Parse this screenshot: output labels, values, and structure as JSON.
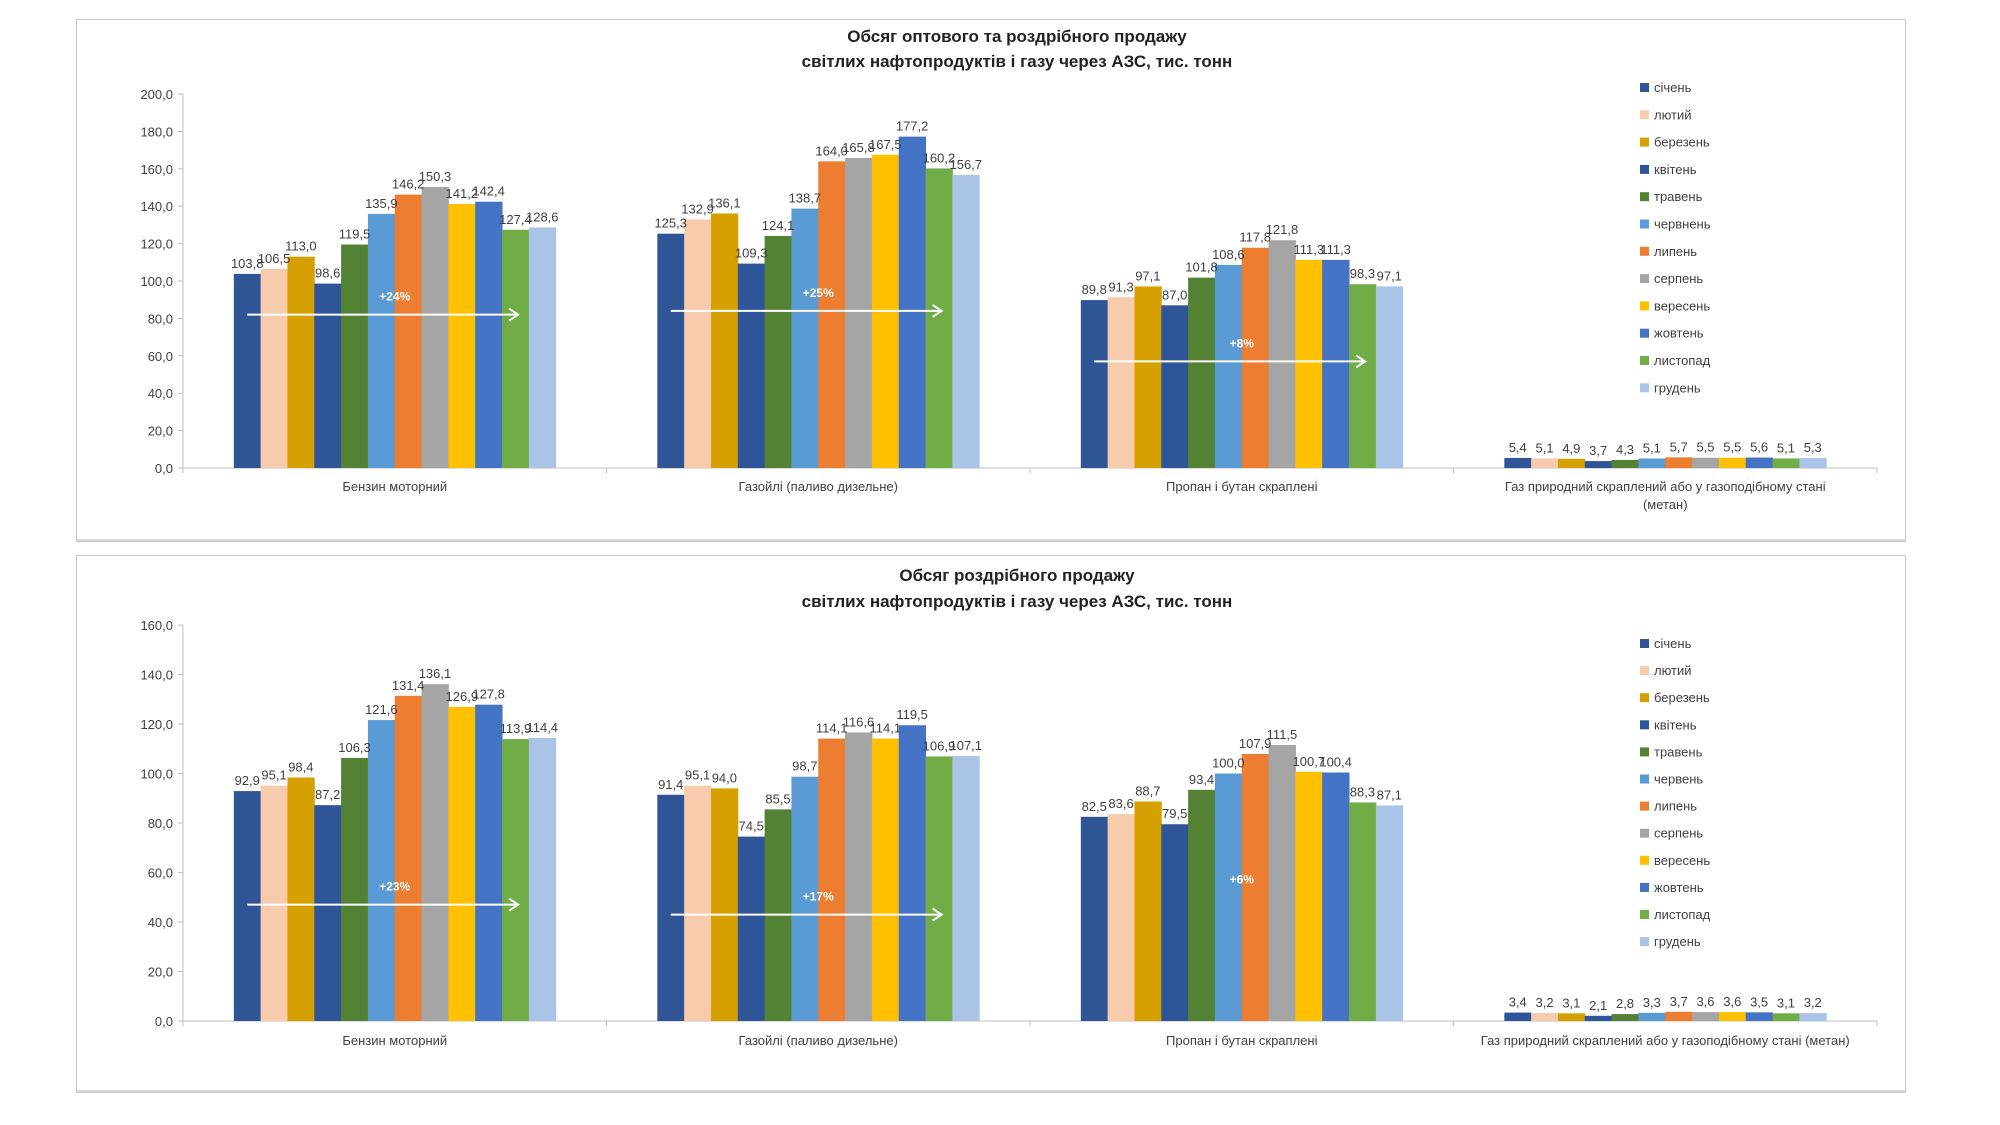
{
  "chart_data": [
    {
      "type": "bar",
      "title": [
        "Обсяг оптового та роздрібного продажу",
        "світлих нафтопродуктів і газу через АЗС, тис. тонн"
      ],
      "xlabel": "",
      "ylabel": "",
      "ylim": [
        0,
        200
      ],
      "yticks": [
        "0,0",
        "20,0",
        "40,0",
        "60,0",
        "80,0",
        "100,0",
        "120,0",
        "140,0",
        "160,0",
        "180,0",
        "200,0"
      ],
      "ytick_values": [
        0,
        20,
        40,
        60,
        80,
        100,
        120,
        140,
        160,
        180,
        200
      ],
      "grid": false,
      "legend_position": "right",
      "categories": [
        [
          "Бензин моторний"
        ],
        [
          "Газойлі (паливо дизельне)"
        ],
        [
          "Пропан і бутан скраплені"
        ],
        [
          "Газ природний скраплений або у газоподібному стані",
          "(метан)"
        ]
      ],
      "series": [
        {
          "name": "січень",
          "color": "#2f5597",
          "values": [
            103.8,
            125.3,
            89.8,
            5.4
          ],
          "labels": [
            "103,8",
            "125,3",
            "89,8",
            "5,4"
          ]
        },
        {
          "name": "лютий",
          "color": "#f8cbad",
          "values": [
            106.5,
            132.9,
            91.3,
            5.1
          ],
          "labels": [
            "106,5",
            "132,9",
            "91,3",
            "5,1"
          ]
        },
        {
          "name": "березень",
          "color": "#d6a000",
          "values": [
            113.0,
            136.1,
            97.1,
            4.9
          ],
          "labels": [
            "113,0",
            "136,1",
            "97,1",
            "4,9"
          ]
        },
        {
          "name": "квітень",
          "color": "#2e5597",
          "values": [
            98.6,
            109.3,
            87.0,
            3.7
          ],
          "labels": [
            "98,6",
            "109,3",
            "87,0",
            "3,7"
          ]
        },
        {
          "name": "травень",
          "color": "#548235",
          "values": [
            119.5,
            124.1,
            101.8,
            4.3
          ],
          "labels": [
            "119,5",
            "124,1",
            "101,8",
            "4,3"
          ]
        },
        {
          "name": "червнень",
          "color": "#5b9bd5",
          "values": [
            135.9,
            138.7,
            108.6,
            5.1
          ],
          "labels": [
            "135,9",
            "138,7",
            "108,6",
            "5,1"
          ]
        },
        {
          "name": "липень",
          "color": "#ed7d31",
          "values": [
            146.2,
            164.0,
            117.8,
            5.7
          ],
          "labels": [
            "146,2",
            "164,0",
            "117,8",
            "5,7"
          ]
        },
        {
          "name": "серпень",
          "color": "#a5a5a5",
          "values": [
            150.3,
            165.8,
            121.8,
            5.5
          ],
          "labels": [
            "150,3",
            "165,8",
            "121,8",
            "5,5"
          ]
        },
        {
          "name": "вересень",
          "color": "#ffc000",
          "values": [
            141.2,
            167.5,
            111.3,
            5.5
          ],
          "labels": [
            "141,2",
            "167,5",
            "111,3",
            "5,5"
          ]
        },
        {
          "name": "жовтень",
          "color": "#4472c4",
          "values": [
            142.4,
            177.2,
            111.3,
            5.6
          ],
          "labels": [
            "142,4",
            "177,2",
            "111,3",
            "5,6"
          ]
        },
        {
          "name": "листопад",
          "color": "#70ad47",
          "values": [
            127.4,
            160.2,
            98.3,
            5.1
          ],
          "labels": [
            "127,4",
            "160,2",
            "98,3",
            "5,1"
          ]
        },
        {
          "name": "грудень",
          "color": "#a9c4e6",
          "values": [
            128.6,
            156.7,
            97.1,
            5.3
          ],
          "labels": [
            "128,6",
            "156,7",
            "97,1",
            "5,3"
          ]
        }
      ],
      "annotations": [
        {
          "category_index": 0,
          "text": "+24%",
          "arrow": true,
          "level": 82
        },
        {
          "category_index": 1,
          "text": "+25%",
          "arrow": true,
          "level": 84
        },
        {
          "category_index": 2,
          "text": "+8%",
          "arrow": true,
          "level": 57
        }
      ]
    },
    {
      "type": "bar",
      "title": [
        "Обсяг роздрібного продажу",
        "світлих нафтопродуктів і газу через АЗС, тис. тонн"
      ],
      "xlabel": "",
      "ylabel": "",
      "ylim": [
        0,
        160
      ],
      "yticks": [
        "0,0",
        "20,0",
        "40,0",
        "60,0",
        "80,0",
        "100,0",
        "120,0",
        "140,0",
        "160,0"
      ],
      "ytick_values": [
        0,
        20,
        40,
        60,
        80,
        100,
        120,
        140,
        160
      ],
      "grid": false,
      "legend_position": "right",
      "categories": [
        [
          "Бензин моторний"
        ],
        [
          "Газойлі (паливо дизельне)"
        ],
        [
          "Пропан і бутан скраплені"
        ],
        [
          "Газ природний скраплений або у газоподібному стані (метан)"
        ]
      ],
      "series": [
        {
          "name": "січень",
          "color": "#2f5597",
          "values": [
            92.9,
            91.4,
            82.5,
            3.4
          ],
          "labels": [
            "92,9",
            "91,4",
            "82,5",
            "3,4"
          ]
        },
        {
          "name": "лютий",
          "color": "#f8cbad",
          "values": [
            95.1,
            95.1,
            83.6,
            3.2
          ],
          "labels": [
            "95,1",
            "95,1",
            "83,6",
            "3,2"
          ]
        },
        {
          "name": "березень",
          "color": "#d6a000",
          "values": [
            98.4,
            94.0,
            88.7,
            3.1
          ],
          "labels": [
            "98,4",
            "94,0",
            "88,7",
            "3,1"
          ]
        },
        {
          "name": "квітень",
          "color": "#2e5597",
          "values": [
            87.2,
            74.5,
            79.5,
            2.1
          ],
          "labels": [
            "87,2",
            "74,5",
            "79,5",
            "2,1"
          ]
        },
        {
          "name": "травень",
          "color": "#548235",
          "values": [
            106.3,
            85.5,
            93.4,
            2.8
          ],
          "labels": [
            "106,3",
            "85,5",
            "93,4",
            "2,8"
          ]
        },
        {
          "name": "червень",
          "color": "#5b9bd5",
          "values": [
            121.6,
            98.7,
            100.0,
            3.3
          ],
          "labels": [
            "121,6",
            "98,7",
            "100,0",
            "3,3"
          ]
        },
        {
          "name": "липень",
          "color": "#ed7d31",
          "values": [
            131.4,
            114.1,
            107.9,
            3.7
          ],
          "labels": [
            "131,4",
            "114,1",
            "107,9",
            "3,7"
          ]
        },
        {
          "name": "серпень",
          "color": "#a5a5a5",
          "values": [
            136.1,
            116.6,
            111.5,
            3.6
          ],
          "labels": [
            "136,1",
            "116,6",
            "111,5",
            "3,6"
          ]
        },
        {
          "name": "вересень",
          "color": "#ffc000",
          "values": [
            126.9,
            114.1,
            100.7,
            3.6
          ],
          "labels": [
            "126,9",
            "114,1",
            "100,7",
            "3,6"
          ]
        },
        {
          "name": "жовтень",
          "color": "#4472c4",
          "values": [
            127.8,
            119.5,
            100.4,
            3.5
          ],
          "labels": [
            "127,8",
            "119,5",
            "100,4",
            "3,5"
          ]
        },
        {
          "name": "листопад",
          "color": "#70ad47",
          "values": [
            113.9,
            106.9,
            88.3,
            3.1
          ],
          "labels": [
            "113,9",
            "106,9",
            "88,3",
            "3,1"
          ]
        },
        {
          "name": "грудень",
          "color": "#a9c4e6",
          "values": [
            114.4,
            107.1,
            87.1,
            3.2
          ],
          "labels": [
            "114,4",
            "107,1",
            "87,1",
            "3,2"
          ]
        }
      ],
      "annotations": [
        {
          "category_index": 0,
          "text": "+23%",
          "arrow": true,
          "level": 47
        },
        {
          "category_index": 1,
          "text": "+17%",
          "arrow": true,
          "level": 43
        },
        {
          "category_index": 2,
          "text": "+6%",
          "arrow": false,
          "level": 50
        }
      ]
    }
  ]
}
